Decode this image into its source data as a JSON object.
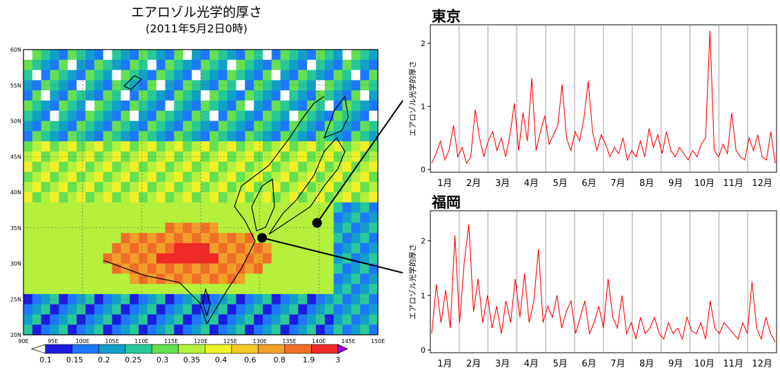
{
  "map": {
    "title": "エアロゾル光学的厚さ",
    "subtitle": "(2011年5月2日0時)",
    "lon_labels": [
      "90E",
      "95E",
      "100E",
      "105E",
      "110E",
      "115E",
      "120E",
      "125E",
      "130E",
      "135E",
      "140E",
      "145E",
      "150E"
    ],
    "lat_labels": [
      "60N",
      "55N",
      "50N",
      "45N",
      "40N",
      "35N",
      "30N",
      "25N",
      "20N"
    ],
    "colorbar_labels": [
      "0.1",
      "0.15",
      "0.2",
      "0.25",
      "0.3",
      "0.35",
      "0.4",
      "0.6",
      "0.8",
      "1.9",
      "3"
    ],
    "colorbar_colors": [
      "#ffffff",
      "#1c1ce0",
      "#1e78ff",
      "#12a0c8",
      "#28c89a",
      "#64e050",
      "#b4f03c",
      "#f0f028",
      "#f0c828",
      "#f0a028",
      "#f06e28",
      "#f02828",
      "#a000e6"
    ],
    "markers": [
      {
        "name": "Fukuoka",
        "lon": 130.4,
        "lat": 33.6
      },
      {
        "name": "Tokyo",
        "lon": 139.7,
        "lat": 35.7
      }
    ]
  },
  "chart_data": [
    {
      "type": "line",
      "title": "東京",
      "ylabel": "エアロゾル光学的厚さ",
      "months": [
        "1月",
        "2月",
        "3月",
        "4月",
        "5月",
        "6月",
        "7月",
        "8月",
        "9月",
        "10月",
        "11月",
        "12月"
      ],
      "yticks": [
        "0",
        "1",
        "2"
      ],
      "ylim": [
        0,
        2.25
      ],
      "color": "#ff0000",
      "series": [
        {
          "values": [
            0.1,
            0.25,
            0.45,
            0.15,
            0.3,
            0.7,
            0.2,
            0.35,
            0.1,
            0.2,
            0.95,
            0.5,
            0.2,
            0.45,
            0.6,
            0.3,
            0.5,
            0.2,
            0.55,
            1.05,
            0.3,
            0.9,
            0.45,
            1.45,
            0.3,
            0.6,
            0.85,
            0.4,
            0.55,
            0.7,
            1.35,
            0.5,
            0.3,
            0.6,
            0.45,
            0.8,
            1.4,
            0.6,
            0.3,
            0.55,
            0.4,
            0.2,
            0.35,
            0.25,
            0.5,
            0.15,
            0.3,
            0.2,
            0.45,
            0.2,
            0.65,
            0.35,
            0.55,
            0.25,
            0.6,
            0.3,
            0.2,
            0.35,
            0.25,
            0.15,
            0.3,
            0.2,
            0.4,
            0.5,
            2.2,
            0.3,
            0.2,
            0.4,
            0.25,
            0.9,
            0.3,
            0.2,
            0.15,
            0.5,
            0.3,
            0.55,
            0.2,
            0.15,
            0.6,
            0.1
          ]
        }
      ]
    },
    {
      "type": "line",
      "title": "福岡",
      "ylabel": "エアロゾル光学的厚さ",
      "months": [
        "1月",
        "2月",
        "3月",
        "4月",
        "5月",
        "6月",
        "7月",
        "8月",
        "9月",
        "10月",
        "11月",
        "12月"
      ],
      "yticks": [
        "0",
        "1",
        "2"
      ],
      "ylim": [
        0,
        2.5
      ],
      "color": "#ff0000",
      "series": [
        {
          "values": [
            0.3,
            1.2,
            0.5,
            1.1,
            0.4,
            2.1,
            0.5,
            1.6,
            2.3,
            0.7,
            1.3,
            0.5,
            1.0,
            0.4,
            0.8,
            0.3,
            0.9,
            0.5,
            1.3,
            0.6,
            1.4,
            0.5,
            0.9,
            1.85,
            0.5,
            0.8,
            0.6,
            1.0,
            0.4,
            0.7,
            0.9,
            0.3,
            0.6,
            0.9,
            0.3,
            0.5,
            0.8,
            0.4,
            1.3,
            0.6,
            0.4,
            1.0,
            0.3,
            0.5,
            0.2,
            0.6,
            0.3,
            0.4,
            0.6,
            0.3,
            0.2,
            0.5,
            0.3,
            0.4,
            0.2,
            0.6,
            0.35,
            0.3,
            0.5,
            0.2,
            0.9,
            0.4,
            0.3,
            0.5,
            0.4,
            0.3,
            0.2,
            0.5,
            0.3,
            1.25,
            0.4,
            0.2,
            0.6,
            0.3,
            0.15
          ]
        }
      ]
    }
  ]
}
